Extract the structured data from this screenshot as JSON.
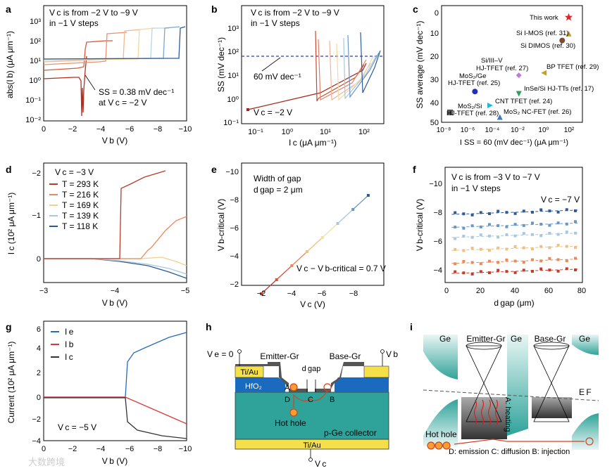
{
  "panels": {
    "a": {
      "letter": "a",
      "caption1": "V c is from −2 V to −9 V",
      "caption2": "in −1 V steps",
      "ss_note1": "SS = 0.38 mV dec⁻¹",
      "ss_note2": "at V c = −2 V",
      "ylabel": "abs(I b) (μA μm⁻¹)",
      "xlabel": "V b (V)",
      "xticks": [
        "0",
        "−2",
        "−4",
        "−6",
        "−8",
        "−10"
      ],
      "yticks": [
        "10⁻²",
        "10⁻¹",
        "10⁰",
        "10¹",
        "10²",
        "10³"
      ]
    },
    "b": {
      "letter": "b",
      "caption1": "V c is from −2 V to −9 V",
      "caption2": "in −1 V steps",
      "ref_line": "60 mV dec⁻¹",
      "vc_note": "V c = −2 V",
      "ylabel": "SS (mV dec⁻¹)",
      "xlabel": "I c (μA μm⁻¹)",
      "xticks": [
        "10⁻¹",
        "10⁰",
        "10¹",
        "10²"
      ],
      "yticks": [
        "10⁻¹",
        "10⁰",
        "10¹",
        "10²",
        "10³"
      ]
    },
    "c": {
      "letter": "c",
      "ylabel": "SS average (mV dec⁻¹)",
      "xlabel": "I SS = 60 (mV dec⁻¹) (μA μm⁻¹)",
      "xticks": [
        "10⁻⁸",
        "10⁻⁶",
        "10⁻⁴",
        "10⁻²",
        "10⁰",
        "10²"
      ],
      "yticks": [
        "0",
        "10",
        "20",
        "30",
        "40",
        "50"
      ],
      "points": [
        {
          "label": "This work",
          "x": 100,
          "y": 2,
          "color": "#e8202a",
          "marker": "star"
        },
        {
          "label": "Si I-MOS (ref. 31)",
          "x": 100,
          "y": 9,
          "color": "#b8a020",
          "marker": "triangle"
        },
        {
          "label": "Si DIMOS (ref. 30)",
          "x": 30,
          "y": 12,
          "color": "#7b4b3a",
          "marker": "circle"
        },
        {
          "label": "BP TFET (ref. 29)",
          "x": 1,
          "y": 26,
          "color": "#c8a020",
          "marker": "triangle-left"
        },
        {
          "label": "Si/III–V HJ-TFET (ref. 27)",
          "x": 0.01,
          "y": 27,
          "color": "#c07ad8",
          "marker": "diamond"
        },
        {
          "label": "MoS2/Ge HJ-TFET (ref. 25)",
          "x": 3e-06,
          "y": 34,
          "color": "#1f2fc0",
          "marker": "circle"
        },
        {
          "label": "InSe/Si HJ-TTs (ref. 17)",
          "x": 0.01,
          "y": 35,
          "color": "#2e9e5b",
          "marker": "triangle-down"
        },
        {
          "label": "CNT TFET (ref. 24)",
          "x": 5e-05,
          "y": 40,
          "color": "#20b8d8",
          "marker": "triangle-right"
        },
        {
          "label": "MoS2/Si HJ-TFET (ref. 28)",
          "x": 3e-08,
          "y": 43,
          "color": "#555555",
          "marker": "square"
        },
        {
          "label": "MoS2 NC-FET (ref. 26)",
          "x": 0.0003,
          "y": 45,
          "color": "#3a7ac0",
          "marker": "triangle"
        }
      ]
    },
    "d": {
      "letter": "d",
      "vc_note": "V c = −3 V",
      "legend": [
        {
          "label": "T = 293 K",
          "color": "#b83a2a"
        },
        {
          "label": "T = 216 K",
          "color": "#e88a5a"
        },
        {
          "label": "T = 169 K",
          "color": "#f0d090"
        },
        {
          "label": "T = 139 K",
          "color": "#a8c8e0"
        },
        {
          "label": "T = 118 K",
          "color": "#2a5a90"
        }
      ],
      "ylabel": "I c (10² μA μm⁻¹)",
      "xlabel": "V b (V)",
      "xticks": [
        "−3",
        "−4",
        "−5"
      ],
      "yticks": [
        "−2",
        "−1",
        "0"
      ]
    },
    "e": {
      "letter": "e",
      "caption1": "Width of gap",
      "caption2": "d gap = 2 μm",
      "relation": "V c − V b-critical = 0.7 V",
      "ylabel": "V b-critical (V)",
      "xlabel": "V c (V)",
      "xticks": [
        "−2",
        "−4",
        "−6",
        "−8"
      ],
      "yticks": [
        "−2",
        "−4",
        "−6",
        "−8",
        "−10"
      ]
    },
    "f": {
      "letter": "f",
      "caption1": "V c is from −3 V to −7 V",
      "caption2": "in −1 V steps",
      "vc_note": "V c = −7 V",
      "ylabel": "V b-critical (V)",
      "xlabel": "d gap (μm)",
      "xticks": [
        "0",
        "20",
        "40",
        "60",
        "80"
      ],
      "yticks": [
        "−4",
        "−6",
        "−8",
        "−10"
      ]
    },
    "g": {
      "letter": "g",
      "legend": [
        {
          "label": "I e",
          "color": "#2a6ab8"
        },
        {
          "label": "I b",
          "color": "#d83a3a"
        },
        {
          "label": "I c",
          "color": "#333333"
        }
      ],
      "vc_note": "V c = −5 V",
      "ylabel": "Current (10² μA μm⁻¹)",
      "xlabel": "V b (V)",
      "xticks": [
        "0",
        "−2",
        "−4",
        "−6",
        "−8",
        "−10"
      ],
      "yticks": [
        "−4",
        "−2",
        "0",
        "2",
        "4",
        "6"
      ]
    },
    "h": {
      "letter": "h",
      "ve": "V e = 0",
      "vb": "V b",
      "vc": "V c",
      "emitter": "Emitter-Gr",
      "base": "Base-Gr",
      "tiau_top": "Ti/Au",
      "tiau_bottom": "Ti/Au",
      "hfo2": "HfO2",
      "dgap": "d gap",
      "collector": "p-Ge collector",
      "hot_hole": "Hot hole",
      "labA": "A",
      "labB": "B",
      "labC": "C",
      "labD": "D"
    },
    "i": {
      "letter": "i",
      "ge1": "Ge",
      "emitter": "Emitter-Gr",
      "ge2": "Ge",
      "base": "Base-Gr",
      "ge3": "Ge",
      "ef": "E F",
      "heating": "A: heating",
      "hot_hole": "Hot hole",
      "steps": "D: emission C: diffusion B: injection"
    }
  },
  "watermark": "大数跨境"
}
